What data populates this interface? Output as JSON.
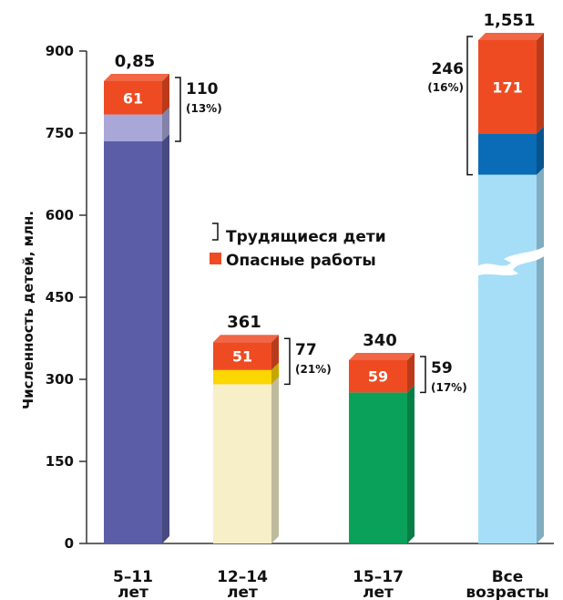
{
  "chart_data": {
    "type": "bar",
    "stacked": true,
    "ylabel": "Численность детей, млн.",
    "ylim": [
      0,
      900
    ],
    "yticks": [
      0,
      150,
      300,
      450,
      600,
      750,
      900
    ],
    "y_axis_break": true,
    "legend": {
      "placement": "center",
      "items": [
        {
          "label": "Трудящиеся дети",
          "marker": "bracket"
        },
        {
          "label": "Опасные работы",
          "marker": "swatch",
          "color": "#ee4b23"
        }
      ]
    },
    "bars": [
      {
        "category_line1": "5–11",
        "category_line2": "лет",
        "total_label": "0,85",
        "hazardous": 61,
        "hazardous_label": "61",
        "working": 110,
        "working_label": "110",
        "working_pct": "(13%)",
        "stack_top": 845,
        "colors": {
          "base": "#5b5ea6",
          "working": "#a9a7d8",
          "hazardous": "#ee4b23"
        }
      },
      {
        "category_line1": "12–14",
        "category_line2": "лет",
        "total_label": "361",
        "hazardous": 51,
        "hazardous_label": "51",
        "working": 77,
        "working_label": "77",
        "working_pct": "(21%)",
        "stack_top": 368,
        "colors": {
          "base": "#f6efc8",
          "working": "#fbd600",
          "hazardous": "#ee4b23"
        }
      },
      {
        "category_line1": "15–17",
        "category_line2": "лет",
        "total_label": "340",
        "hazardous": 59,
        "hazardous_label": "59",
        "working": 59,
        "working_label": "59",
        "working_pct": "(17%)",
        "stack_top": 335,
        "colors": {
          "base": "#0aa25a",
          "working": "#0aa25a",
          "hazardous": "#ee4b23"
        }
      },
      {
        "category_line1": "Все",
        "category_line2": "возрасты",
        "total_label": "1,551",
        "hazardous": 171,
        "hazardous_label": "171",
        "working": 246,
        "working_label": "246",
        "working_pct": "(16%)",
        "stack_top": 920,
        "colors": {
          "base": "#a6def8",
          "working": "#0a6cb6",
          "hazardous": "#ee4b23"
        }
      }
    ]
  }
}
